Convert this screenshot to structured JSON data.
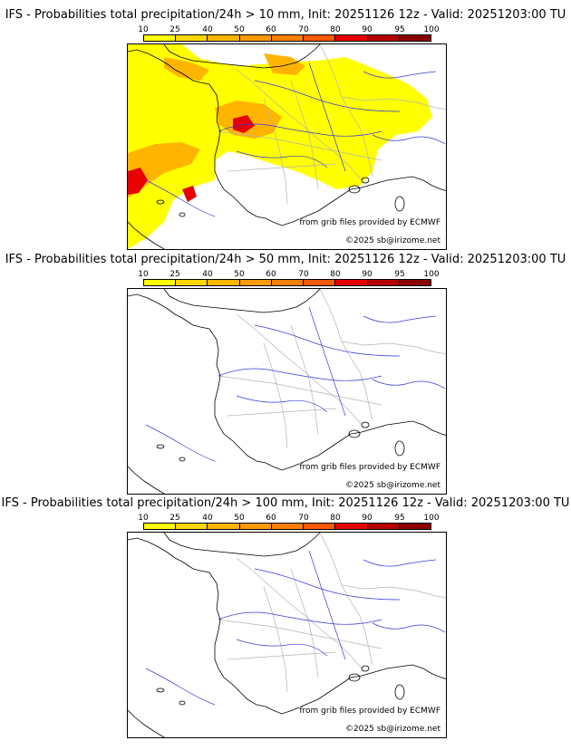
{
  "legend": {
    "ticks": [
      "10",
      "25",
      "40",
      "50",
      "60",
      "70",
      "80",
      "90",
      "95",
      "100"
    ],
    "colors": [
      "#ffff00",
      "#ffd700",
      "#ffb400",
      "#ff9a00",
      "#ff7f00",
      "#ff5a00",
      "#e60000",
      "#b40000",
      "#8b0000",
      "#5a0000"
    ]
  },
  "panels": [
    {
      "title": "IFS - Probabilities total precipitation/24h > 10 mm, Init: 20251126 12z - Valid: 20251203:00 TU",
      "source": "from grib files provided by ECMWF",
      "copyright": "©2025 sb@irizome.net",
      "precip_pattern": "widespread"
    },
    {
      "title": "IFS - Probabilities total precipitation/24h > 50 mm, Init: 20251126 12z - Valid: 20251203:00 TU",
      "source": "from grib files provided by ECMWF",
      "copyright": "©2025 sb@irizome.net",
      "precip_pattern": "none"
    },
    {
      "title": "IFS - Probabilities total precipitation/24h > 100 mm, Init: 20251126 12z - Valid: 20251203:00 TU",
      "source": "from grib files provided by ECMWF",
      "copyright": "©2025 sb@irizome.net",
      "precip_pattern": "none"
    }
  ],
  "colors": {
    "coastline": "#000000",
    "rivers": "#3a3adc",
    "borders": "#b4b4b4"
  }
}
